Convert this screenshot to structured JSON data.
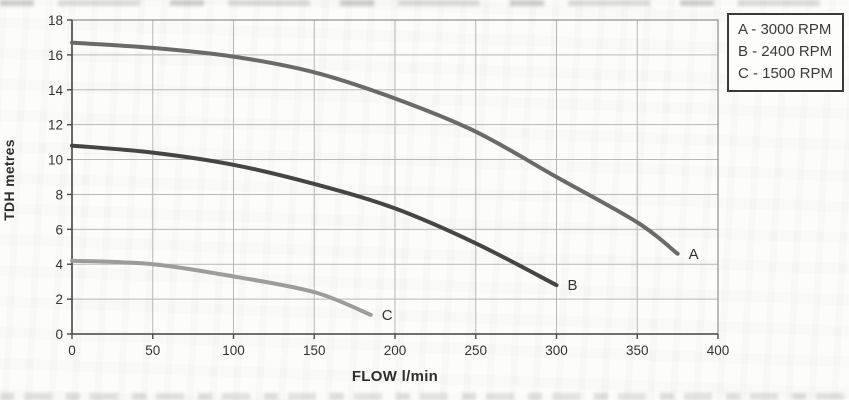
{
  "axes": {
    "y_title": "TDH metres",
    "x_title": "FLOW l/min"
  },
  "legend": {
    "items": [
      {
        "label": "A - 3000 RPM"
      },
      {
        "label": "B - 2400 RPM"
      },
      {
        "label": "C - 1500 RPM"
      }
    ]
  },
  "chart_data": {
    "type": "line",
    "title": "",
    "xlabel": "FLOW l/min",
    "ylabel": "TDH metres",
    "xlim": [
      0,
      400
    ],
    "ylim": [
      0,
      18
    ],
    "x_ticks": [
      0,
      50,
      100,
      150,
      200,
      250,
      300,
      350,
      400
    ],
    "y_ticks": [
      0,
      2,
      4,
      6,
      8,
      10,
      12,
      14,
      16,
      18
    ],
    "grid": true,
    "legend_position": "top-right-outside",
    "series": [
      {
        "name": "A",
        "legend_label": "A - 3000 RPM",
        "end_label": "A",
        "color": "#6a6a6a",
        "points": [
          [
            0,
            16.7
          ],
          [
            50,
            16.4
          ],
          [
            100,
            15.9
          ],
          [
            150,
            15.0
          ],
          [
            200,
            13.5
          ],
          [
            250,
            11.6
          ],
          [
            300,
            9.0
          ],
          [
            350,
            6.4
          ],
          [
            375,
            4.6
          ]
        ]
      },
      {
        "name": "B",
        "legend_label": "B - 2400 RPM",
        "end_label": "B",
        "color": "#454545",
        "points": [
          [
            0,
            10.8
          ],
          [
            50,
            10.4
          ],
          [
            100,
            9.7
          ],
          [
            150,
            8.6
          ],
          [
            200,
            7.2
          ],
          [
            250,
            5.2
          ],
          [
            300,
            2.8
          ]
        ]
      },
      {
        "name": "C",
        "legend_label": "C - 1500 RPM",
        "end_label": "C",
        "color": "#9c9c9c",
        "points": [
          [
            0,
            4.2
          ],
          [
            50,
            4.0
          ],
          [
            100,
            3.3
          ],
          [
            150,
            2.4
          ],
          [
            185,
            1.1
          ]
        ]
      }
    ],
    "style": {
      "grid_color": "#b8b8b8",
      "border_color": "#8f8f8f",
      "axis_color": "#4a4a4a",
      "tick_text_color": "#333333",
      "curve_width": 4
    }
  }
}
